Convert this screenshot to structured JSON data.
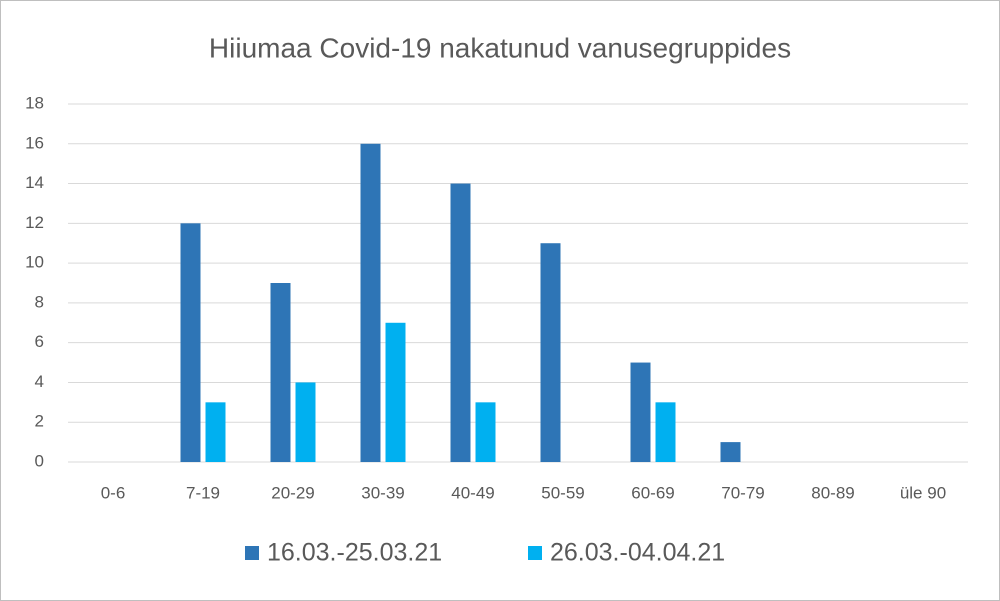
{
  "chart_data": {
    "type": "bar",
    "title": "Hiiumaa Covid-19 nakatunud vanusegruppides",
    "categories": [
      "0-6",
      "7-19",
      "20-29",
      "30-39",
      "40-49",
      "50-59",
      "60-69",
      "70-79",
      "80-89",
      "üle 90"
    ],
    "series": [
      {
        "name": "16.03.-25.03.21",
        "color": "#2e75b6",
        "values": [
          0,
          12,
          9,
          16,
          14,
          11,
          5,
          1,
          0,
          0
        ]
      },
      {
        "name": "26.03.-04.04.21",
        "color": "#00b0f0",
        "values": [
          0,
          3,
          4,
          7,
          3,
          0,
          3,
          0,
          0,
          0
        ]
      }
    ],
    "ylim": [
      0,
      18
    ],
    "yticks": [
      0,
      2,
      4,
      6,
      8,
      10,
      12,
      14,
      16,
      18
    ],
    "grid": true,
    "legend": "bottom"
  }
}
